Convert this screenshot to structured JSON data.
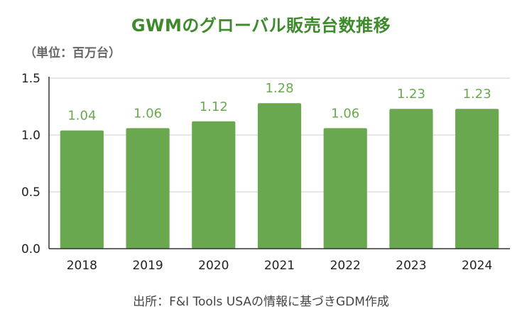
{
  "chart_data": {
    "type": "bar",
    "title": "GWMのグローバル販売台数推移",
    "unit_label": "（単位：百万台）",
    "categories": [
      "2018",
      "2019",
      "2020",
      "2021",
      "2022",
      "2023",
      "2024"
    ],
    "values": [
      1.04,
      1.06,
      1.12,
      1.28,
      1.06,
      1.23,
      1.23
    ],
    "data_labels": [
      "1.04",
      "1.06",
      "1.12",
      "1.28",
      "1.06",
      "1.23",
      "1.23"
    ],
    "y_ticks": [
      "0.0",
      "0.5",
      "1.0",
      "1.5"
    ],
    "ylim": [
      0,
      1.5
    ],
    "xlabel": "",
    "ylabel": "",
    "grid": true,
    "bar_color": "#6aa84f",
    "label_color": "#6aa84f",
    "title_color": "#3e8a2c"
  },
  "source_note": "出所：F&I Tools USAの情報に基づきGDM作成"
}
